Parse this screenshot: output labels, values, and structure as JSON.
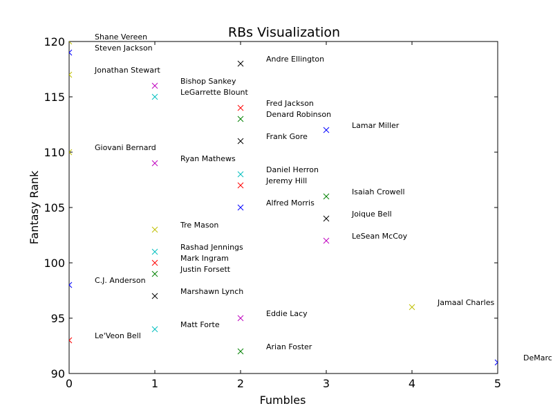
{
  "chart_data": {
    "type": "scatter",
    "title": "RBs Visualization",
    "xlabel": "Fumbles",
    "ylabel": "Fantasy Rank",
    "xlim": [
      0,
      5
    ],
    "ylim": [
      90,
      120
    ],
    "xticks": [
      "0",
      "1",
      "2",
      "3",
      "4",
      "5"
    ],
    "yticks": [
      "90",
      "95",
      "100",
      "105",
      "110",
      "115",
      "120"
    ],
    "grid": false,
    "marker": "x",
    "points": [
      {
        "label": "Shane Vereen",
        "x": 0,
        "y": 120,
        "color": "#bfbf00"
      },
      {
        "label": "Steven Jackson",
        "x": 0,
        "y": 119,
        "color": "#0000ff"
      },
      {
        "label": "Andre Ellington",
        "x": 2,
        "y": 118,
        "color": "#000000"
      },
      {
        "label": "Jonathan Stewart",
        "x": 0,
        "y": 117,
        "color": "#bfbf00"
      },
      {
        "label": "Bishop Sankey",
        "x": 1,
        "y": 116,
        "color": "#bf00bf"
      },
      {
        "label": "LeGarrette Blount",
        "x": 1,
        "y": 115,
        "color": "#00bfbf"
      },
      {
        "label": "Fred Jackson",
        "x": 2,
        "y": 114,
        "color": "#ff0000"
      },
      {
        "label": "Denard Robinson",
        "x": 2,
        "y": 113,
        "color": "#008000"
      },
      {
        "label": "Lamar Miller",
        "x": 3,
        "y": 112,
        "color": "#0000ff"
      },
      {
        "label": "Frank Gore",
        "x": 2,
        "y": 111,
        "color": "#000000"
      },
      {
        "label": "Giovani Bernard",
        "x": 0,
        "y": 110,
        "color": "#bfbf00"
      },
      {
        "label": "Ryan Mathews",
        "x": 1,
        "y": 109,
        "color": "#bf00bf"
      },
      {
        "label": "Daniel Herron",
        "x": 2,
        "y": 108,
        "color": "#00bfbf"
      },
      {
        "label": "Jeremy Hill",
        "x": 2,
        "y": 107,
        "color": "#ff0000"
      },
      {
        "label": "Isaiah Crowell",
        "x": 3,
        "y": 106,
        "color": "#008000"
      },
      {
        "label": "Alfred Morris",
        "x": 2,
        "y": 105,
        "color": "#0000ff"
      },
      {
        "label": "Joique Bell",
        "x": 3,
        "y": 104,
        "color": "#000000"
      },
      {
        "label": "Tre Mason",
        "x": 1,
        "y": 103,
        "color": "#bfbf00"
      },
      {
        "label": "LeSean McCoy",
        "x": 3,
        "y": 102,
        "color": "#bf00bf"
      },
      {
        "label": "Rashad Jennings",
        "x": 1,
        "y": 101,
        "color": "#00bfbf"
      },
      {
        "label": "Mark Ingram",
        "x": 1,
        "y": 100,
        "color": "#ff0000"
      },
      {
        "label": "Justin Forsett",
        "x": 1,
        "y": 99,
        "color": "#008000"
      },
      {
        "label": "C.J. Anderson",
        "x": 0,
        "y": 98,
        "color": "#0000ff"
      },
      {
        "label": "Marshawn Lynch",
        "x": 1,
        "y": 97,
        "color": "#000000"
      },
      {
        "label": "Jamaal Charles",
        "x": 4,
        "y": 96,
        "color": "#bfbf00"
      },
      {
        "label": "Eddie Lacy",
        "x": 2,
        "y": 95,
        "color": "#bf00bf"
      },
      {
        "label": "Matt Forte",
        "x": 1,
        "y": 94,
        "color": "#00bfbf"
      },
      {
        "label": "Le'Veon Bell",
        "x": 0,
        "y": 93,
        "color": "#ff0000"
      },
      {
        "label": "Arian Foster",
        "x": 2,
        "y": 92,
        "color": "#008000"
      },
      {
        "label": "DeMarc",
        "x": 5,
        "y": 91,
        "color": "#0000ff"
      }
    ]
  }
}
